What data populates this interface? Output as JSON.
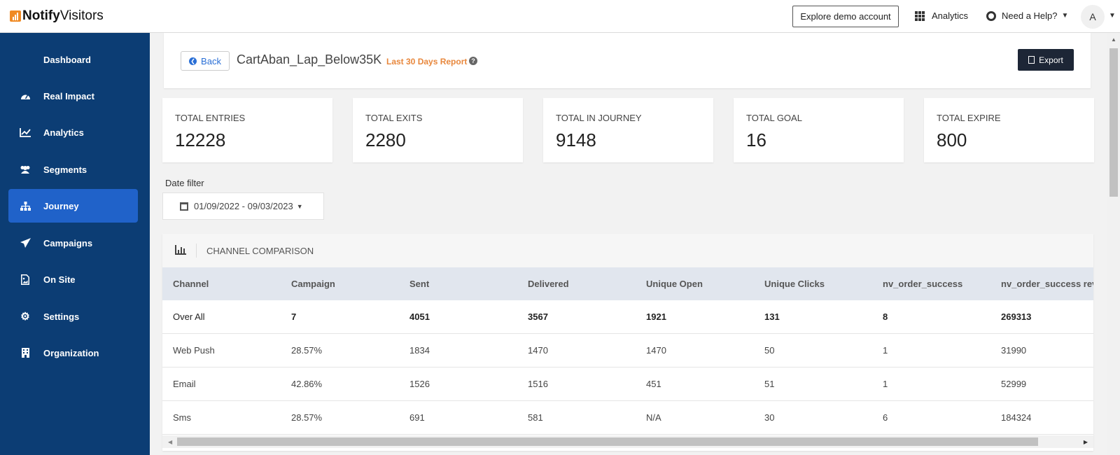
{
  "brand": {
    "name_bold": "Notify",
    "name_rest": "Visitors"
  },
  "topbar": {
    "demo_label": "Explore demo account",
    "analytics_label": "Analytics",
    "help_label": "Need a Help?",
    "avatar_initial": "A"
  },
  "sidebar": {
    "items": [
      {
        "label": "Dashboard",
        "icon": "grid-icon",
        "active": false
      },
      {
        "label": "Real Impact",
        "icon": "speedometer-icon",
        "active": false
      },
      {
        "label": "Analytics",
        "icon": "line-chart-icon",
        "active": false
      },
      {
        "label": "Segments",
        "icon": "users-icon",
        "active": false
      },
      {
        "label": "Journey",
        "icon": "sitemap-icon",
        "active": true
      },
      {
        "label": "Campaigns",
        "icon": "paper-plane-icon",
        "active": false
      },
      {
        "label": "On Site",
        "icon": "file-image-icon",
        "active": false
      },
      {
        "label": "Settings",
        "icon": "gear-icon",
        "active": false
      },
      {
        "label": "Organization",
        "icon": "building-icon",
        "active": false
      }
    ]
  },
  "header": {
    "back_label": "Back",
    "title": "CartAban_Lap_Below35K",
    "range_label": "Last 30 Days Report",
    "help_glyph": "?",
    "export_label": "Export"
  },
  "stats": [
    {
      "label": "TOTAL ENTRIES",
      "value": "12228"
    },
    {
      "label": "TOTAL EXITS",
      "value": "2280"
    },
    {
      "label": "TOTAL IN JOURNEY",
      "value": "9148"
    },
    {
      "label": "TOTAL GOAL",
      "value": "16"
    },
    {
      "label": "TOTAL EXPIRE",
      "value": "800"
    }
  ],
  "date_filter": {
    "label": "Date filter",
    "value": "01/09/2022 - 09/03/2023"
  },
  "channel": {
    "title": "CHANNEL COMPARISON",
    "columns": [
      "Channel",
      "Campaign",
      "Sent",
      "Delivered",
      "Unique Open",
      "Unique Clicks",
      "nv_order_success",
      "nv_order_success reve"
    ],
    "rows": [
      [
        "Over All",
        "7",
        "4051",
        "3567",
        "1921",
        "131",
        "8",
        "269313"
      ],
      [
        "Web Push",
        "28.57%",
        "1834",
        "1470",
        "1470",
        "50",
        "1",
        "31990"
      ],
      [
        "Email",
        "42.86%",
        "1526",
        "1516",
        "451",
        "51",
        "1",
        "52999"
      ],
      [
        "Sms",
        "28.57%",
        "691",
        "581",
        "N/A",
        "30",
        "6",
        "184324"
      ]
    ]
  },
  "colors": {
    "sidebar_bg": "#0c3d74",
    "sidebar_active": "#2062c9",
    "accent_orange": "#e8873c",
    "export_bg": "#1d2636",
    "link_blue": "#2a6fd6"
  }
}
